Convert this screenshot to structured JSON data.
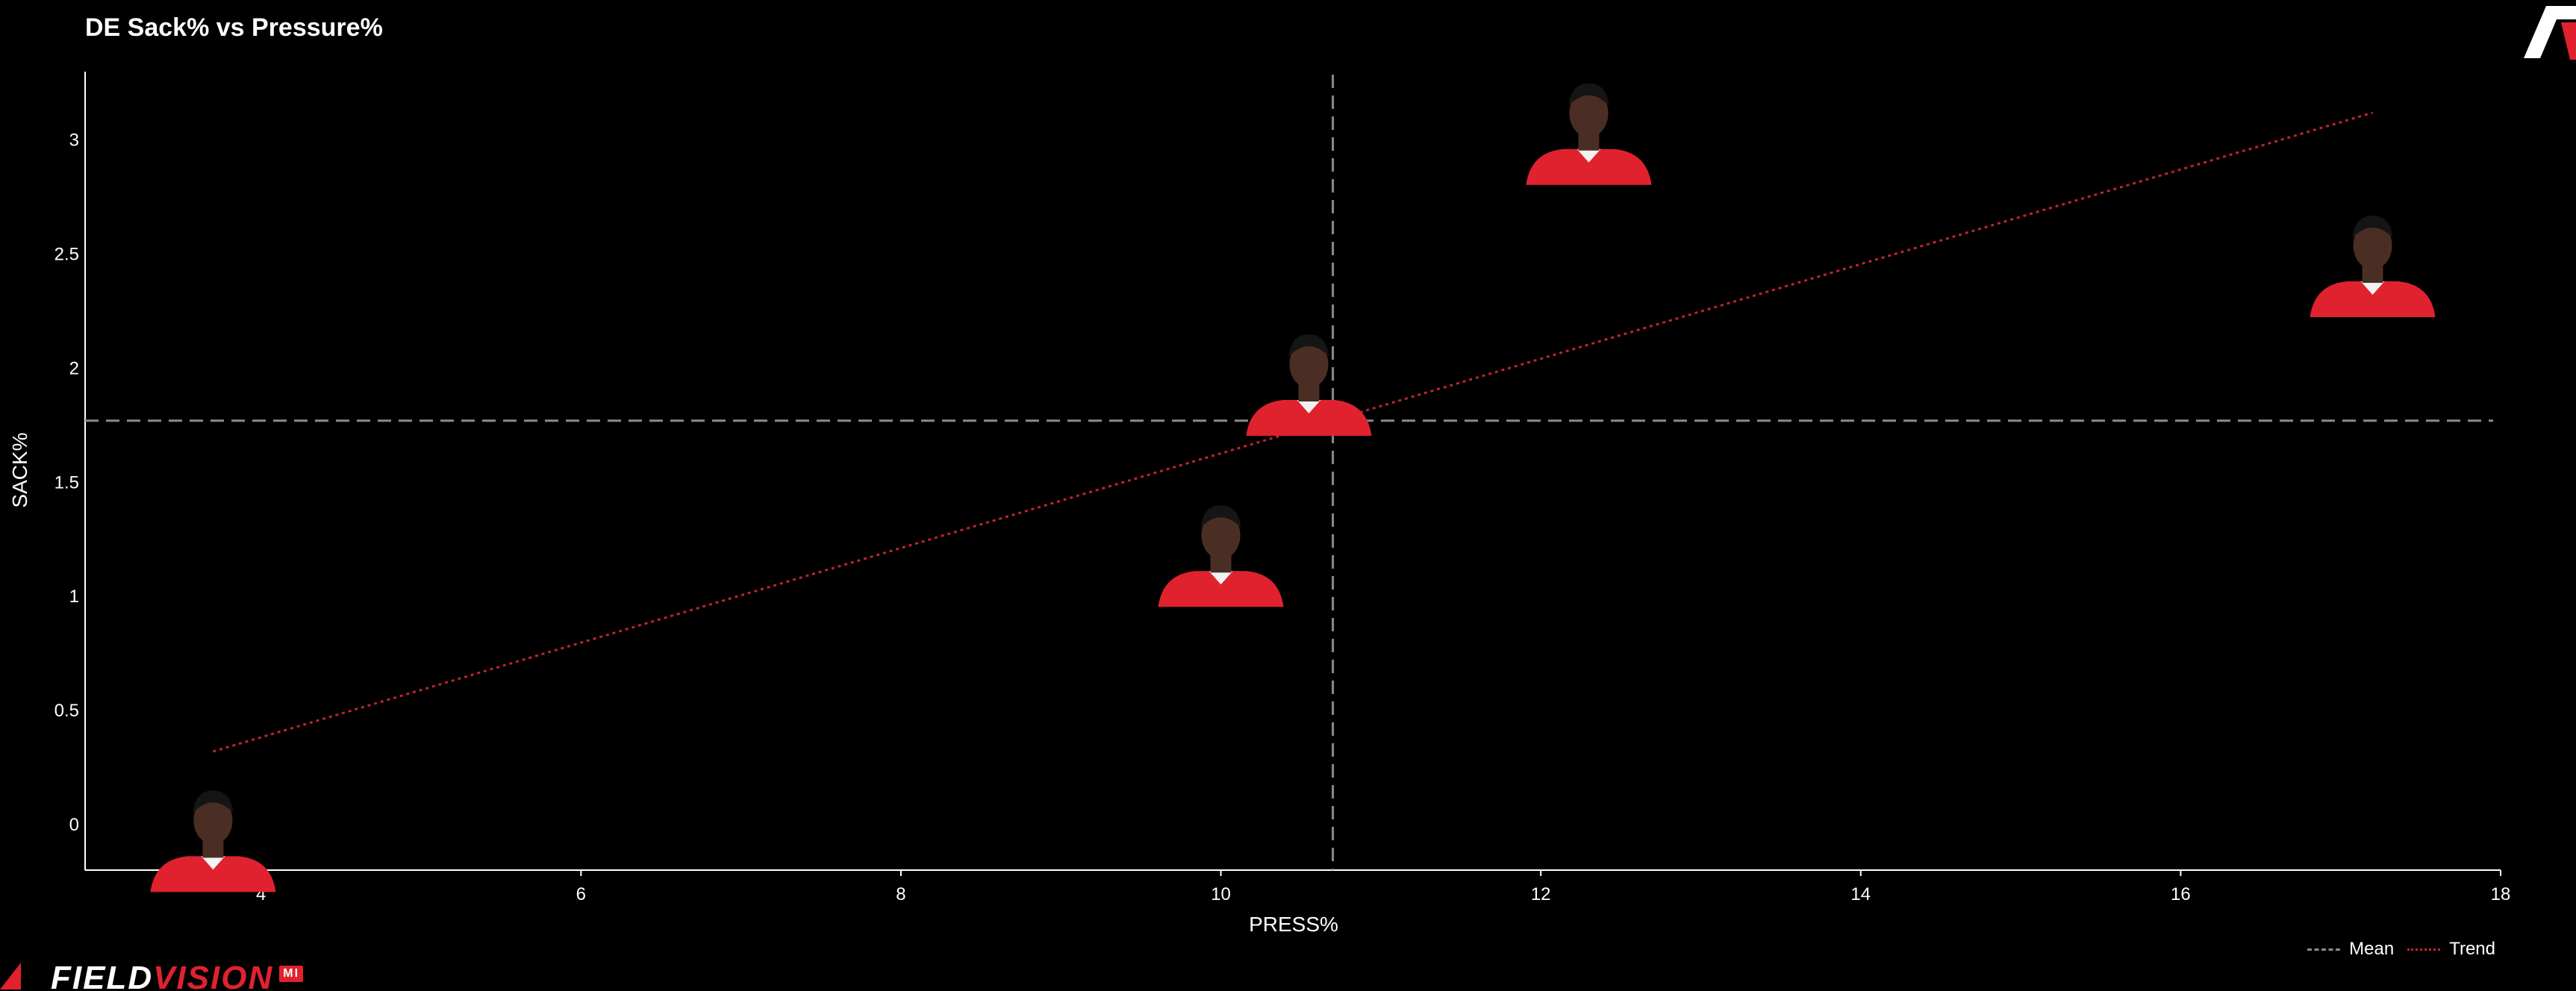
{
  "title": "DE Sack% vs Pressure%",
  "brand": {
    "field": "FIELD",
    "vision": "VISION",
    "badge": "MI"
  },
  "legend": {
    "mean_label": "Mean",
    "trend_label": "Trend"
  },
  "colors": {
    "background": "#000000",
    "axis": "#ffffff",
    "mean_line": "#8a8a8a",
    "trend_line": "#c4232f",
    "jersey": "#e0222e",
    "skin": "#4a2e24",
    "hair": "#151515"
  },
  "chart_data": {
    "type": "scatter",
    "title": "DE Sack% vs Pressure%",
    "xlabel": "PRESS%",
    "ylabel": "SACK%",
    "xlim": [
      2.9,
      18
    ],
    "ylim": [
      -0.2,
      3.3
    ],
    "x_ticks": [
      4,
      6,
      8,
      10,
      12,
      14,
      16,
      18
    ],
    "y_ticks": [
      0,
      0.5,
      1,
      1.5,
      2,
      2.5,
      3
    ],
    "y_tick_labels": [
      "0",
      "0.5",
      "1",
      "1.5",
      "2",
      "2.5",
      "3"
    ],
    "points": [
      {
        "x": 3.7,
        "y": -0.1
      },
      {
        "x": 10.0,
        "y": 1.15
      },
      {
        "x": 10.55,
        "y": 1.9
      },
      {
        "x": 12.3,
        "y": 3.0
      },
      {
        "x": 17.2,
        "y": 2.42
      }
    ],
    "marker": "player-headshot",
    "mean_x": 10.7,
    "mean_y": 1.77,
    "trend": {
      "x": [
        3.7,
        17.2
      ],
      "y": [
        0.32,
        3.12
      ]
    },
    "grid": false,
    "legend_position": "bottom-right"
  }
}
